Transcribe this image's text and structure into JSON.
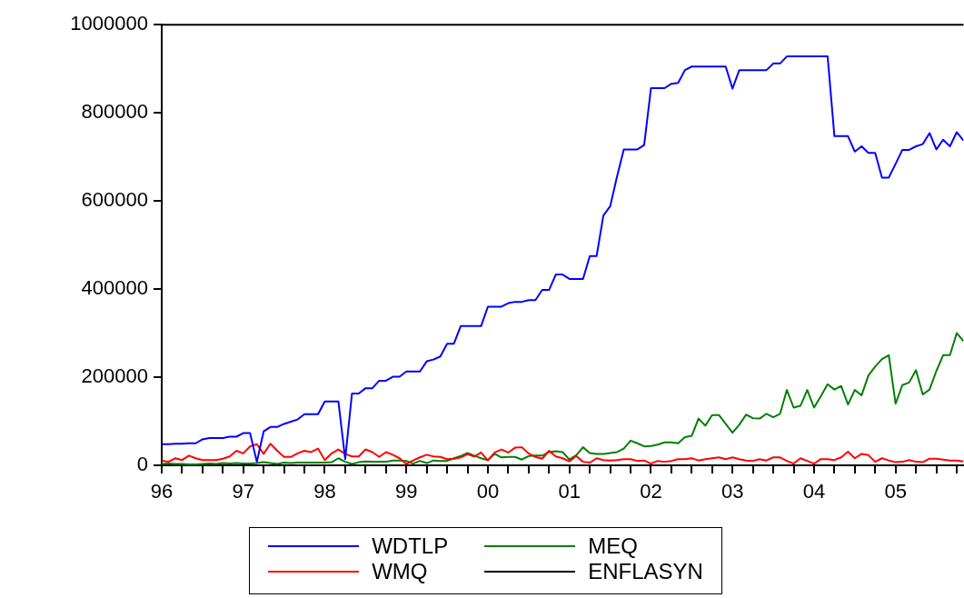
{
  "chart_data": {
    "type": "line",
    "x": [
      "1996-01",
      "1996-02",
      "1996-03",
      "1996-04",
      "1996-05",
      "1996-06",
      "1996-07",
      "1996-08",
      "1996-09",
      "1996-10",
      "1996-11",
      "1996-12",
      "1997-01",
      "1997-02",
      "1997-03",
      "1997-04",
      "1997-05",
      "1997-06",
      "1997-07",
      "1997-08",
      "1997-09",
      "1997-10",
      "1997-11",
      "1997-12",
      "1998-01",
      "1998-02",
      "1998-03",
      "1998-04",
      "1998-05",
      "1998-06",
      "1998-07",
      "1998-08",
      "1998-09",
      "1998-10",
      "1998-11",
      "1998-12",
      "1999-01",
      "1999-02",
      "1999-03",
      "1999-04",
      "1999-05",
      "1999-06",
      "1999-07",
      "1999-08",
      "1999-09",
      "1999-10",
      "1999-11",
      "1999-12",
      "2000-01",
      "2000-02",
      "2000-03",
      "2000-04",
      "2000-05",
      "2000-06",
      "2000-07",
      "2000-08",
      "2000-09",
      "2000-10",
      "2000-11",
      "2000-12",
      "2001-01",
      "2001-02",
      "2001-03",
      "2001-04",
      "2001-05",
      "2001-06",
      "2001-07",
      "2001-08",
      "2001-09",
      "2001-10",
      "2001-11",
      "2001-12",
      "2002-01",
      "2002-02",
      "2002-03",
      "2002-04",
      "2002-05",
      "2002-06",
      "2002-07",
      "2002-08",
      "2002-09",
      "2002-10",
      "2002-11",
      "2002-12",
      "2003-01",
      "2003-02",
      "2003-03",
      "2003-04",
      "2003-05",
      "2003-06",
      "2003-07",
      "2003-08",
      "2003-09",
      "2003-10",
      "2003-11",
      "2003-12",
      "2004-01",
      "2004-02",
      "2004-03",
      "2004-04",
      "2004-05",
      "2004-06",
      "2004-07",
      "2004-08",
      "2004-09",
      "2004-10",
      "2004-11",
      "2004-12",
      "2005-01",
      "2005-02",
      "2005-03",
      "2005-04",
      "2005-05",
      "2005-06",
      "2005-07",
      "2005-08",
      "2005-09",
      "2005-10",
      "2005-11"
    ],
    "series": [
      {
        "name": "WDTLP",
        "color": "#0000ff",
        "values": [
          48000,
          48000,
          49000,
          49000,
          50000,
          50000,
          59000,
          62000,
          62000,
          62000,
          65000,
          65000,
          73000,
          73000,
          8000,
          77000,
          87000,
          87000,
          94000,
          99000,
          104000,
          116000,
          116000,
          116000,
          145000,
          145000,
          145000,
          14000,
          163000,
          163000,
          175000,
          175000,
          192000,
          192000,
          201000,
          201000,
          213000,
          213000,
          213000,
          236000,
          240000,
          247000,
          276000,
          276000,
          316000,
          316000,
          316000,
          316000,
          360000,
          360000,
          360000,
          368000,
          371000,
          371000,
          375000,
          375000,
          398000,
          398000,
          433000,
          433000,
          423000,
          423000,
          423000,
          475000,
          475000,
          567000,
          588000,
          655000,
          717000,
          717000,
          717000,
          727000,
          856000,
          856000,
          856000,
          866000,
          868000,
          897000,
          905000,
          905000,
          905000,
          905000,
          905000,
          905000,
          855000,
          897000,
          897000,
          897000,
          897000,
          897000,
          912000,
          912000,
          928000,
          928000,
          928000,
          928000,
          928000,
          928000,
          928000,
          747000,
          747000,
          747000,
          712000,
          724000,
          709000,
          709000,
          653000,
          653000,
          684000,
          716000,
          716000,
          724000,
          729000,
          754000,
          717000,
          739000,
          724000,
          756000,
          737000
        ]
      },
      {
        "name": "WMQ",
        "color": "#ff0000",
        "values": [
          11000,
          8000,
          16000,
          12000,
          22000,
          16000,
          12000,
          12000,
          12000,
          15000,
          20000,
          33000,
          27000,
          43000,
          48000,
          26000,
          49000,
          33000,
          19000,
          19000,
          27000,
          33000,
          30000,
          38000,
          12000,
          27000,
          36000,
          26000,
          20000,
          20000,
          36000,
          30000,
          19000,
          30000,
          24000,
          16000,
          3000,
          11000,
          18000,
          24000,
          20000,
          19000,
          14000,
          15000,
          18000,
          25000,
          20000,
          29000,
          11000,
          29000,
          36000,
          29000,
          40000,
          41000,
          27000,
          19000,
          15000,
          33000,
          20000,
          16000,
          9000,
          21000,
          8000,
          6000,
          16000,
          12000,
          11000,
          12000,
          14000,
          14000,
          10000,
          11000,
          4000,
          10000,
          8000,
          10000,
          14000,
          14000,
          16000,
          11000,
          14000,
          16000,
          18000,
          14000,
          18000,
          14000,
          11000,
          10000,
          14000,
          11000,
          18000,
          18000,
          10000,
          4000,
          16000,
          10000,
          4000,
          14000,
          14000,
          12000,
          18000,
          31000,
          16000,
          26000,
          23000,
          8000,
          16000,
          11000,
          7000,
          8000,
          12000,
          8000,
          7000,
          15000,
          15000,
          13000,
          11000,
          11000,
          9000
        ]
      },
      {
        "name": "MEQ",
        "color": "#008000",
        "values": [
          3000,
          4000,
          3000,
          3000,
          2000,
          2000,
          3000,
          4000,
          3000,
          5000,
          4000,
          5000,
          4000,
          4000,
          5000,
          7000,
          5000,
          3000,
          6000,
          5000,
          6000,
          6000,
          6000,
          6000,
          6000,
          7000,
          16000,
          8000,
          3000,
          7000,
          9000,
          8000,
          8000,
          8000,
          11000,
          11000,
          10000,
          4000,
          10000,
          5000,
          11000,
          10000,
          10000,
          16000,
          21000,
          28000,
          22000,
          16000,
          12000,
          26000,
          18000,
          19000,
          19000,
          13000,
          21000,
          22000,
          22000,
          30000,
          32000,
          30000,
          13000,
          23000,
          41000,
          28000,
          26000,
          26000,
          28000,
          30000,
          38000,
          56000,
          50000,
          43000,
          44000,
          47000,
          52000,
          52000,
          50000,
          64000,
          67000,
          106000,
          90000,
          114000,
          114000,
          94000,
          74000,
          92000,
          115000,
          107000,
          106000,
          117000,
          109000,
          117000,
          171000,
          131000,
          135000,
          171000,
          131000,
          157000,
          184000,
          172000,
          180000,
          138000,
          171000,
          159000,
          204000,
          224000,
          241000,
          250000,
          140000,
          182000,
          188000,
          216000,
          161000,
          172000,
          214000,
          250000,
          250000,
          300000,
          282000
        ]
      },
      {
        "name": "ENFLASYN",
        "color": "#000000",
        "values": [
          0,
          0,
          0,
          0,
          0,
          0,
          0,
          0,
          0,
          0,
          0,
          0,
          0,
          0,
          0,
          0,
          0,
          0,
          0,
          0,
          0,
          0,
          0,
          0,
          0,
          0,
          0,
          0,
          0,
          0,
          0,
          0,
          0,
          0,
          0,
          0,
          0,
          0,
          0,
          0,
          0,
          0,
          0,
          0,
          0,
          0,
          0,
          0,
          0,
          0,
          0,
          0,
          0,
          0,
          0,
          0,
          0,
          0,
          0,
          0,
          0,
          0,
          0,
          0,
          0,
          0,
          0,
          0,
          0,
          0,
          0,
          0,
          0,
          0,
          0,
          0,
          0,
          0,
          0,
          0,
          0,
          0,
          0,
          0,
          0,
          0,
          0,
          0,
          0,
          0,
          0,
          0,
          0,
          0,
          0,
          0,
          0,
          0,
          0,
          0,
          0,
          0,
          0,
          0,
          0,
          0,
          0,
          0,
          0,
          0,
          0,
          0,
          0,
          0,
          0,
          0,
          0,
          0,
          0
        ]
      }
    ],
    "xlim": [
      "1996-01",
      "2005-11"
    ],
    "xticks": [
      {
        "value": "1996",
        "label": "96"
      },
      {
        "value": "1996-04",
        "label": null
      },
      {
        "value": "1996-07",
        "label": null
      },
      {
        "value": "1996-10",
        "label": null
      },
      {
        "value": "1997",
        "label": "97"
      },
      {
        "value": "1997-04",
        "label": null
      },
      {
        "value": "1997-07",
        "label": null
      },
      {
        "value": "1997-10",
        "label": null
      },
      {
        "value": "1998",
        "label": "98"
      },
      {
        "value": "1998-04",
        "label": null
      },
      {
        "value": "1998-07",
        "label": null
      },
      {
        "value": "1998-10",
        "label": null
      },
      {
        "value": "1999",
        "label": "99"
      },
      {
        "value": "1999-04",
        "label": null
      },
      {
        "value": "1999-07",
        "label": null
      },
      {
        "value": "1999-10",
        "label": null
      },
      {
        "value": "2000",
        "label": "00"
      },
      {
        "value": "2000-04",
        "label": null
      },
      {
        "value": "2000-07",
        "label": null
      },
      {
        "value": "2000-10",
        "label": null
      },
      {
        "value": "2001",
        "label": "01"
      },
      {
        "value": "2001-04",
        "label": null
      },
      {
        "value": "2001-07",
        "label": null
      },
      {
        "value": "2001-10",
        "label": null
      },
      {
        "value": "2002",
        "label": "02"
      },
      {
        "value": "2002-04",
        "label": null
      },
      {
        "value": "2002-07",
        "label": null
      },
      {
        "value": "2002-10",
        "label": null
      },
      {
        "value": "2003",
        "label": "03"
      },
      {
        "value": "2003-04",
        "label": null
      },
      {
        "value": "2003-07",
        "label": null
      },
      {
        "value": "2003-10",
        "label": null
      },
      {
        "value": "2004",
        "label": "04"
      },
      {
        "value": "2004-04",
        "label": null
      },
      {
        "value": "2004-07",
        "label": null
      },
      {
        "value": "2004-10",
        "label": null
      },
      {
        "value": "2005",
        "label": "05"
      },
      {
        "value": "2005-04",
        "label": null
      },
      {
        "value": "2005-07",
        "label": null
      },
      {
        "value": "2005-10",
        "label": null
      }
    ],
    "ylim": [
      0,
      1000000
    ],
    "yticks": [
      0,
      200000,
      400000,
      600000,
      800000,
      1000000
    ],
    "grid": false,
    "legend": "bottom",
    "marker": "none",
    "line_style": "solid"
  }
}
